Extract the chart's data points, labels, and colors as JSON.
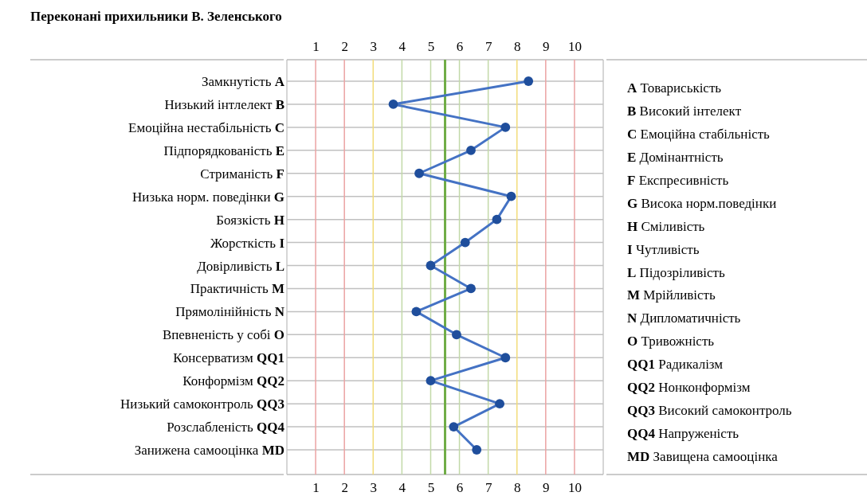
{
  "chart_data": {
    "type": "line",
    "orientation": "horizontal",
    "title": "Переконані прихильники В. Зеленського",
    "categories": [
      "Замкнутість A",
      "Низький інтлелект B",
      "Емоційна нестабільність C",
      "Підпорядкованість E",
      "Стриманість F",
      "Низька норм. поведінки G",
      "Боязкість H",
      "Жорсткість I",
      "Довірливість L",
      "Практичність M",
      "Прямолінійність N",
      "Впевненість у собі O",
      "Консерватизм QQ1",
      "Конформізм QQ2",
      "Низький самоконтроль QQ3",
      "Розслабленість QQ4",
      "Занижена самооцінка MD"
    ],
    "y2_categories": [
      "A Товариськість",
      "B Високий інтелект",
      "C Емоційна стабільність",
      "E Домінантність",
      "F Експресивність",
      "G Висока норм.поведінки",
      "H Сміливість",
      "I Чутливість",
      "L Підозріливість",
      "M Мрійливість",
      "N Дипломатичність",
      "O Тривожність",
      "QQ1 Радикалізм",
      "QQ2 Нонконформізм",
      "QQ3 Високий самоконтроль",
      "QQ4 Напруженість",
      "MD Завищена самооцінка"
    ],
    "series": [
      {
        "color": "#4472c4",
        "values": [
          8.4,
          3.7,
          7.6,
          6.4,
          4.6,
          7.8,
          7.3,
          6.2,
          5.0,
          6.4,
          4.5,
          5.9,
          7.6,
          5.0,
          7.4,
          5.8,
          6.6
        ]
      }
    ],
    "marker": "circle",
    "xlim": [
      0,
      11
    ],
    "xticks": [
      1,
      2,
      3,
      4,
      5,
      6,
      7,
      8,
      9,
      10
    ],
    "x2lim": [
      0,
      11
    ],
    "x2ticks": [
      1,
      2,
      3,
      4,
      5,
      6,
      7,
      8,
      9,
      10
    ],
    "grid": "y",
    "ref_lines": [
      {
        "axis": "x",
        "value": 1,
        "color": "#eba3a3"
      },
      {
        "axis": "x",
        "value": 2,
        "color": "#eba3a3"
      },
      {
        "axis": "x",
        "value": 3,
        "color": "#f2dc7a"
      },
      {
        "axis": "x",
        "value": 4,
        "color": "#c2d9a8"
      },
      {
        "axis": "x",
        "value": 5,
        "color": "#c2d9a8"
      },
      {
        "axis": "x",
        "value": 6,
        "color": "#c2d9a8"
      },
      {
        "axis": "x",
        "value": 7,
        "color": "#c2d9a8"
      },
      {
        "axis": "x",
        "value": 8,
        "color": "#f2dc7a"
      },
      {
        "axis": "x",
        "value": 9,
        "color": "#eba3a3"
      },
      {
        "axis": "x",
        "value": 10,
        "color": "#eba3a3"
      },
      {
        "axis": "x",
        "value": 5.5,
        "color": "#70ad47"
      }
    ]
  }
}
